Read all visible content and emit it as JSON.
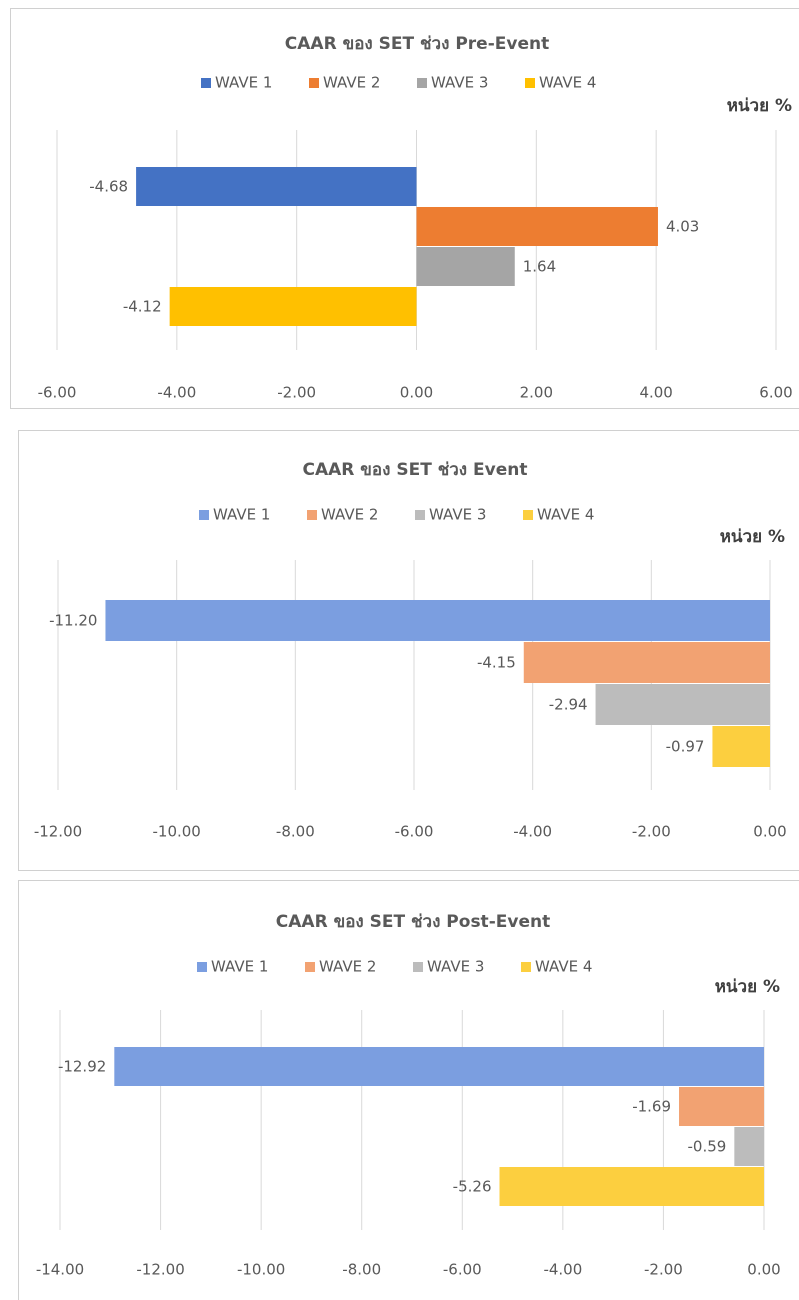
{
  "chart_data": [
    {
      "type": "bar",
      "title": "CAAR ของ SET ช่วง Pre-Event",
      "unit_label": "หน่วย %",
      "series": [
        {
          "name": "WAVE 1",
          "color": "#4472c4",
          "values": [
            -4.68
          ],
          "value_labels": [
            "-4.68"
          ]
        },
        {
          "name": "WAVE 2",
          "color": "#ed7d31",
          "values": [
            4.03
          ],
          "value_labels": [
            "4.03"
          ]
        },
        {
          "name": "WAVE 3",
          "color": "#a5a5a5",
          "values": [
            1.64
          ],
          "value_labels": [
            "1.64"
          ]
        },
        {
          "name": "WAVE 4",
          "color": "#ffc000",
          "values": [
            -4.12
          ],
          "value_labels": [
            "-4.12"
          ]
        }
      ],
      "xlim": [
        -6,
        6
      ],
      "xticks": [
        {
          "value": -6,
          "label": "-6.00"
        },
        {
          "value": -4,
          "label": "-4.00"
        },
        {
          "value": -2,
          "label": "-2.00"
        },
        {
          "value": 0,
          "label": "0.00"
        },
        {
          "value": 2,
          "label": "2.00"
        },
        {
          "value": 4,
          "label": "4.00"
        },
        {
          "value": 6,
          "label": "6.00"
        }
      ],
      "grid": true
    },
    {
      "type": "bar",
      "title": "CAAR ของ SET ช่วง Event",
      "unit_label": "หน่วย %",
      "series": [
        {
          "name": "WAVE 1",
          "color": "#7b9ee0",
          "values": [
            -11.2
          ],
          "value_labels": [
            "-11.20"
          ]
        },
        {
          "name": "WAVE 2",
          "color": "#f2a272",
          "values": [
            -4.15
          ],
          "value_labels": [
            "-4.15"
          ]
        },
        {
          "name": "WAVE 3",
          "color": "#bcbcbc",
          "values": [
            -2.94
          ],
          "value_labels": [
            "-2.94"
          ]
        },
        {
          "name": "WAVE 4",
          "color": "#fccf3f",
          "values": [
            -0.97
          ],
          "value_labels": [
            "-0.97"
          ]
        }
      ],
      "xlim": [
        -12,
        0
      ],
      "xticks": [
        {
          "value": -12,
          "label": "-12.00"
        },
        {
          "value": -10,
          "label": "-10.00"
        },
        {
          "value": -8,
          "label": "-8.00"
        },
        {
          "value": -6,
          "label": "-6.00"
        },
        {
          "value": -4,
          "label": "-4.00"
        },
        {
          "value": -2,
          "label": "-2.00"
        },
        {
          "value": 0,
          "label": "0.00"
        }
      ],
      "grid": true
    },
    {
      "type": "bar",
      "title": "CAAR ของ SET ช่วง Post-Event",
      "unit_label": "หน่วย %",
      "series": [
        {
          "name": "WAVE 1",
          "color": "#7b9ee0",
          "values": [
            -12.92
          ],
          "value_labels": [
            "-12.92"
          ]
        },
        {
          "name": "WAVE 2",
          "color": "#f2a272",
          "values": [
            -1.69
          ],
          "value_labels": [
            "-1.69"
          ]
        },
        {
          "name": "WAVE 3",
          "color": "#bcbcbc",
          "values": [
            -0.59
          ],
          "value_labels": [
            "-0.59"
          ]
        },
        {
          "name": "WAVE 4",
          "color": "#fccf3f",
          "values": [
            -5.26
          ],
          "value_labels": [
            "-5.26"
          ]
        }
      ],
      "xlim": [
        -14,
        0
      ],
      "xticks": [
        {
          "value": -14,
          "label": "-14.00"
        },
        {
          "value": -12,
          "label": "-12.00"
        },
        {
          "value": -10,
          "label": "-10.00"
        },
        {
          "value": -8,
          "label": "-8.00"
        },
        {
          "value": -6,
          "label": "-6.00"
        },
        {
          "value": -4,
          "label": "-4.00"
        },
        {
          "value": -2,
          "label": "-2.00"
        },
        {
          "value": 0,
          "label": "0.00"
        }
      ],
      "grid": true
    }
  ]
}
